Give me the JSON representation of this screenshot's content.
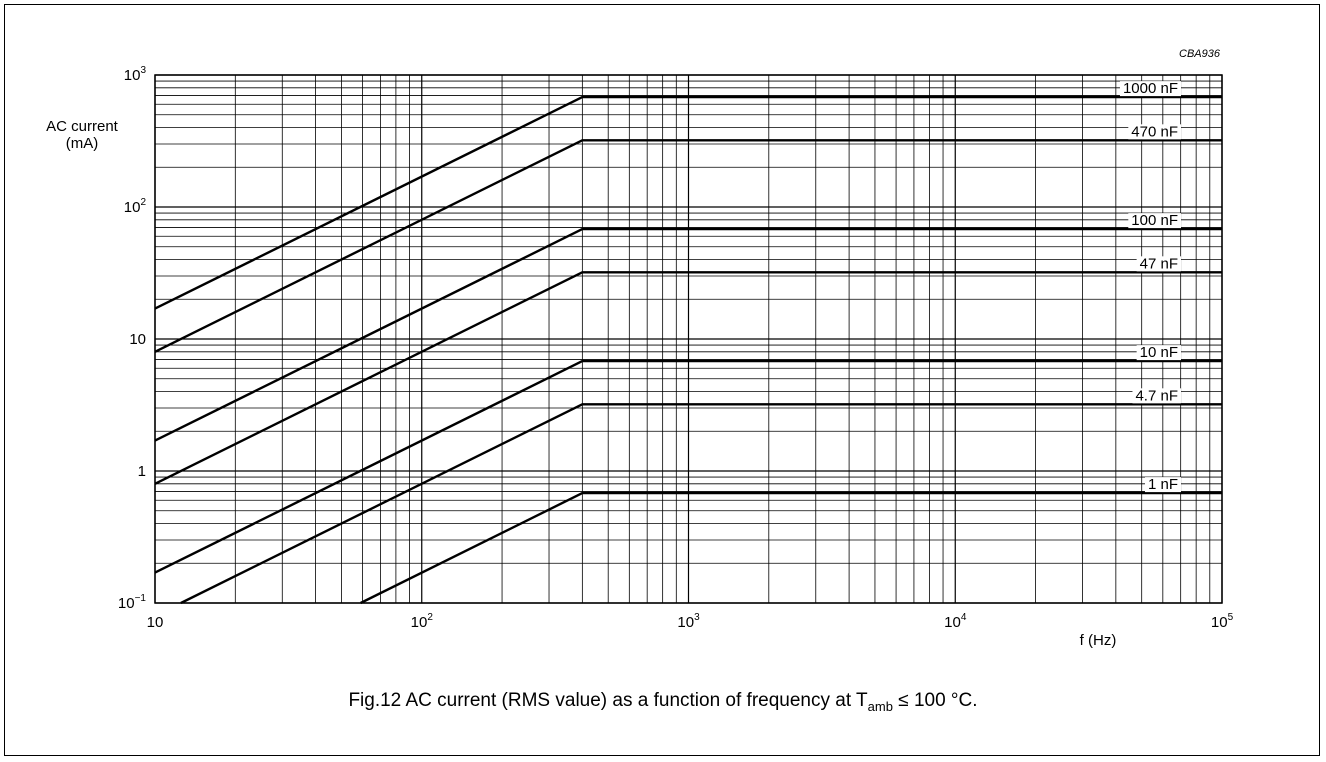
{
  "figure_code": "CBA936",
  "caption": {
    "prefix": "Fig.12  AC current (RMS value) as a function of frequency at T",
    "subscript": "amb",
    "suffix": " ≤ 100 °C."
  },
  "chart_data": {
    "type": "line",
    "title": "",
    "xlabel": "f  (Hz)",
    "ylabel_line1": "AC current",
    "ylabel_line2": "(mA)",
    "x_scale": "log",
    "y_scale": "log",
    "xlim": [
      10,
      100000
    ],
    "ylim": [
      0.1,
      1000
    ],
    "grid": true,
    "x_ticks": [
      {
        "value": 10,
        "base": "10",
        "exp": ""
      },
      {
        "value": 100,
        "base": "10",
        "exp": "2"
      },
      {
        "value": 1000,
        "base": "10",
        "exp": "3"
      },
      {
        "value": 10000,
        "base": "10",
        "exp": "4"
      },
      {
        "value": 100000,
        "base": "10",
        "exp": "5"
      }
    ],
    "y_ticks": [
      {
        "value": 0.1,
        "base": "10",
        "exp": "−1"
      },
      {
        "value": 1,
        "base": "1",
        "exp": ""
      },
      {
        "value": 10,
        "base": "10",
        "exp": ""
      },
      {
        "value": 100,
        "base": "10",
        "exp": "2"
      },
      {
        "value": 1000,
        "base": "10",
        "exp": "3"
      }
    ],
    "series": [
      {
        "name": "1000 nF",
        "x": [
          10,
          400,
          100000
        ],
        "y": [
          17,
          680,
          680
        ]
      },
      {
        "name": "470 nF",
        "x": [
          10,
          400,
          100000
        ],
        "y": [
          8.0,
          320,
          320
        ]
      },
      {
        "name": "100 nF",
        "x": [
          10,
          400,
          100000
        ],
        "y": [
          1.7,
          68,
          68
        ]
      },
      {
        "name": "47 nF",
        "x": [
          10,
          400,
          100000
        ],
        "y": [
          0.8,
          32,
          32
        ]
      },
      {
        "name": "10 nF",
        "x": [
          10,
          400,
          100000
        ],
        "y": [
          0.17,
          6.8,
          6.8
        ]
      },
      {
        "name": "4.7 nF",
        "x": [
          12.5,
          400,
          100000
        ],
        "y": [
          0.1,
          3.2,
          3.2
        ]
      },
      {
        "name": "1 nF",
        "x": [
          59,
          400,
          100000
        ],
        "y": [
          0.1,
          0.68,
          0.68
        ]
      }
    ]
  }
}
